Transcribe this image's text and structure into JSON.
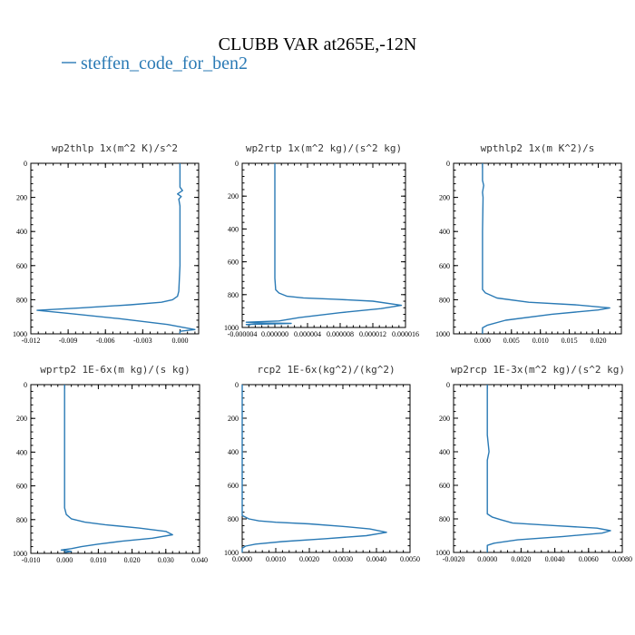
{
  "header": {
    "title": "CLUBB VAR at265E,-12N",
    "legend_label": "steffen_code_for_ben2",
    "series_color": "#2a7ab5"
  },
  "chart_data": [
    {
      "type": "line",
      "title": "wp2thlp  1x(m^2 K)/s^2",
      "xlim": [
        -0.012,
        0.0015
      ],
      "ylim": [
        1000,
        0
      ],
      "xticks": [
        -0.012,
        -0.009,
        -0.006,
        -0.003,
        0.0
      ],
      "xtick_labels": [
        "-0.012",
        "-0.009",
        "-0.006",
        "-0.003",
        "0.000"
      ],
      "yticks": [
        0,
        200,
        400,
        600,
        800,
        1000
      ],
      "ytick_labels": [
        "0",
        "200",
        "400",
        "600",
        "800",
        "1000"
      ],
      "series": [
        {
          "x": [
            0.0,
            0.0,
            0.0,
            0.0002,
            -0.0002,
            0.0001,
            -0.0001,
            0.0,
            0.0,
            0.0,
            -0.0001,
            -0.0002,
            -0.0006,
            -0.0015,
            -0.004,
            -0.008,
            -0.0115,
            -0.009,
            -0.005,
            -0.001,
            0.0012,
            0.0,
            0.0
          ],
          "y": [
            0,
            120,
            140,
            160,
            180,
            195,
            210,
            250,
            400,
            600,
            750,
            780,
            800,
            815,
            830,
            848,
            862,
            880,
            910,
            945,
            975,
            985,
            1000
          ]
        }
      ]
    },
    {
      "type": "line",
      "title": "wp2rtp  1x(m^2 kg)/(s^2 kg)",
      "xlim": [
        -4e-06,
        1.6e-05
      ],
      "ylim": [
        1000,
        0
      ],
      "xticks": [
        -4e-06,
        0.0,
        4e-06,
        8e-06,
        1.2e-05,
        1.6e-05
      ],
      "xtick_labels": [
        "-0.000004",
        "0.000000",
        "0.000004",
        "0.000008",
        "0.000012",
        "0.000016"
      ],
      "yticks": [
        0,
        200,
        400,
        600,
        800,
        1000
      ],
      "ytick_labels": [
        "0",
        "200",
        "400",
        "600",
        "800",
        "1000"
      ],
      "series": [
        {
          "x": [
            0.0,
            0.0,
            0.0,
            0.0,
            1e-07,
            5e-07,
            1.5e-06,
            3.5e-06,
            7.5e-06,
            1.2e-05,
            1.55e-05,
            1.3e-05,
            8e-06,
            3e-06,
            5e-07,
            -3.5e-06,
            -2.5e-06,
            2e-06,
            -3.5e-06,
            -3e-06
          ],
          "y": [
            0,
            200,
            400,
            700,
            770,
            790,
            810,
            820,
            828,
            840,
            865,
            885,
            910,
            940,
            960,
            968,
            972,
            975,
            982,
            985
          ]
        }
      ]
    },
    {
      "type": "line",
      "title": "wpthlp2  1x(m K^2)/s",
      "xlim": [
        -0.005,
        0.024
      ],
      "ylim": [
        1000,
        0
      ],
      "xticks": [
        0.0,
        0.005,
        0.01,
        0.015,
        0.02
      ],
      "xtick_labels": [
        "0.000",
        "0.005",
        "0.010",
        "0.015",
        "0.020"
      ],
      "yticks": [
        0,
        200,
        400,
        600,
        800,
        1000
      ],
      "ytick_labels": [
        "0",
        "200",
        "400",
        "600",
        "800",
        "1000"
      ],
      "series": [
        {
          "x": [
            0.0,
            0.0,
            0.0002,
            0.0,
            0.0001,
            0.0,
            0.0,
            0.0,
            0.0005,
            0.0025,
            0.008,
            0.016,
            0.022,
            0.02,
            0.012,
            0.004,
            0.0008,
            0.0,
            0.0,
            0.0
          ],
          "y": [
            0,
            100,
            130,
            170,
            200,
            400,
            700,
            740,
            760,
            790,
            815,
            830,
            848,
            860,
            885,
            920,
            950,
            965,
            985,
            1000
          ]
        }
      ]
    },
    {
      "type": "line",
      "title": "wprtp2  1E-6x(m kg)/(s kg)",
      "xlim": [
        -0.01,
        0.04
      ],
      "ylim": [
        1000,
        0
      ],
      "xticks": [
        -0.01,
        0.0,
        0.01,
        0.02,
        0.03,
        0.04
      ],
      "xtick_labels": [
        "-0.010",
        "0.000",
        "0.010",
        "0.020",
        "0.030",
        "0.040"
      ],
      "yticks": [
        0,
        200,
        400,
        600,
        800,
        1000
      ],
      "ytick_labels": [
        "0",
        "200",
        "400",
        "600",
        "800",
        "1000"
      ],
      "series": [
        {
          "x": [
            0.0,
            0.0,
            0.0,
            0.0,
            0.0005,
            0.002,
            0.006,
            0.012,
            0.022,
            0.03,
            0.032,
            0.026,
            0.017,
            0.01,
            0.005,
            0.002,
            -0.001,
            0.002,
            0.0
          ],
          "y": [
            0,
            300,
            600,
            730,
            770,
            795,
            815,
            830,
            850,
            870,
            890,
            910,
            928,
            945,
            960,
            972,
            980,
            988,
            995
          ]
        }
      ]
    },
    {
      "type": "line",
      "title": "rcp2  1E-6x(kg^2)/(kg^2)",
      "xlim": [
        0.0,
        0.005
      ],
      "ylim": [
        1000,
        0
      ],
      "xticks": [
        0.0,
        0.001,
        0.002,
        0.003,
        0.004,
        0.005
      ],
      "xtick_labels": [
        "0.0000",
        "0.0010",
        "0.0020",
        "0.0030",
        "0.0040",
        "0.0050"
      ],
      "yticks": [
        0,
        200,
        400,
        600,
        800,
        1000
      ],
      "ytick_labels": [
        "0",
        "200",
        "400",
        "600",
        "800",
        "1000"
      ],
      "series": [
        {
          "x": [
            0.0,
            0.0,
            0.0,
            0.0001,
            0.0002,
            0.0005,
            0.001,
            0.002,
            0.003,
            0.0038,
            0.0043,
            0.0037,
            0.0025,
            0.0012,
            0.0004,
            0.0001,
            0.0,
            0.0
          ],
          "y": [
            0,
            400,
            780,
            790,
            800,
            812,
            820,
            830,
            845,
            860,
            880,
            900,
            918,
            935,
            950,
            962,
            975,
            1000
          ]
        }
      ]
    },
    {
      "type": "line",
      "title": "wp2rcp  1E-3x(m^2 kg)/(s^2 kg)",
      "xlim": [
        -0.002,
        0.008
      ],
      "ylim": [
        1000,
        0
      ],
      "xticks": [
        -0.002,
        0.0,
        0.002,
        0.004,
        0.006,
        0.008
      ],
      "xtick_labels": [
        "-0.0020",
        "0.0000",
        "0.0020",
        "0.0040",
        "0.0060",
        "0.0080"
      ],
      "yticks": [
        0,
        200,
        400,
        600,
        800,
        1000
      ],
      "ytick_labels": [
        "0",
        "200",
        "400",
        "600",
        "800",
        "1000"
      ],
      "series": [
        {
          "x": [
            0.0,
            0.0,
            0.0001,
            0.0,
            0.0,
            0.0,
            0.0,
            0.0003,
            0.0008,
            0.0015,
            0.004,
            0.0065,
            0.0073,
            0.0068,
            0.0045,
            0.0018,
            0.0004,
            0.0,
            0.0,
            0.0
          ],
          "y": [
            0,
            300,
            400,
            450,
            600,
            700,
            770,
            790,
            805,
            825,
            840,
            855,
            870,
            885,
            905,
            925,
            945,
            958,
            975,
            1000
          ]
        }
      ]
    }
  ]
}
